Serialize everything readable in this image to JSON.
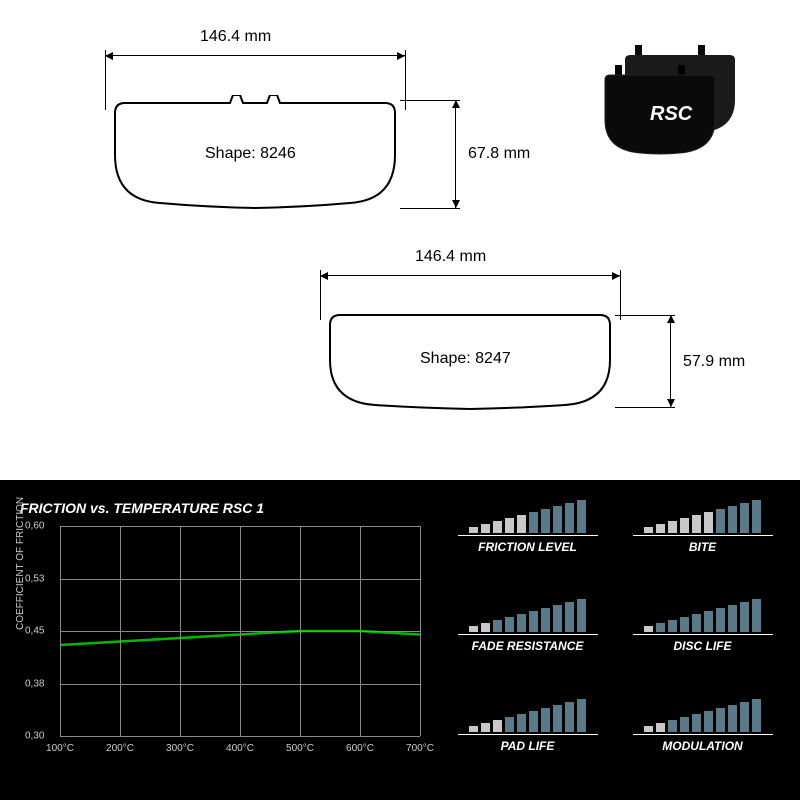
{
  "brand": "RSC",
  "shapes": {
    "top": {
      "label": "Shape: 8246",
      "width_mm": "146.4 mm",
      "height_mm": "67.8 mm"
    },
    "bottom": {
      "label": "Shape: 8247",
      "width_mm": "146.4 mm",
      "height_mm": "57.9 mm"
    }
  },
  "chart": {
    "title": "FRICTION vs. TEMPERATURE RSC 1",
    "y_label": "COEFFICIENT OF FRICTION",
    "y_ticks": [
      "0,30",
      "0,38",
      "0,45",
      "0,53",
      "0,60"
    ],
    "y_min": 0.3,
    "y_max": 0.6,
    "x_ticks": [
      "100°C",
      "200°C",
      "300°C",
      "400°C",
      "500°C",
      "600°C",
      "700°C"
    ],
    "x_min": 100,
    "x_max": 700,
    "line_color": "#00b800",
    "grid_color": "#888888",
    "background": "#000000",
    "text_color": "#cccccc",
    "points": [
      {
        "x": 100,
        "y": 0.43
      },
      {
        "x": 200,
        "y": 0.435
      },
      {
        "x": 300,
        "y": 0.44
      },
      {
        "x": 400,
        "y": 0.445
      },
      {
        "x": 500,
        "y": 0.45
      },
      {
        "x": 600,
        "y": 0.45
      },
      {
        "x": 700,
        "y": 0.445
      }
    ]
  },
  "ratings": {
    "max_bars": 10,
    "filled_color": "#5a7a8a",
    "empty_color": "#c8c8c8",
    "items": [
      {
        "label": "FRICTION LEVEL",
        "value": 5
      },
      {
        "label": "BITE",
        "value": 4
      },
      {
        "label": "FADE RESISTANCE",
        "value": 8
      },
      {
        "label": "DISC LIFE",
        "value": 9
      },
      {
        "label": "PAD LIFE",
        "value": 7
      },
      {
        "label": "MODULATION",
        "value": 8
      }
    ]
  },
  "colors": {
    "line": "#000000",
    "bg_top": "#ffffff",
    "bg_bottom": "#000000",
    "product_body": "#1a1a1a"
  }
}
